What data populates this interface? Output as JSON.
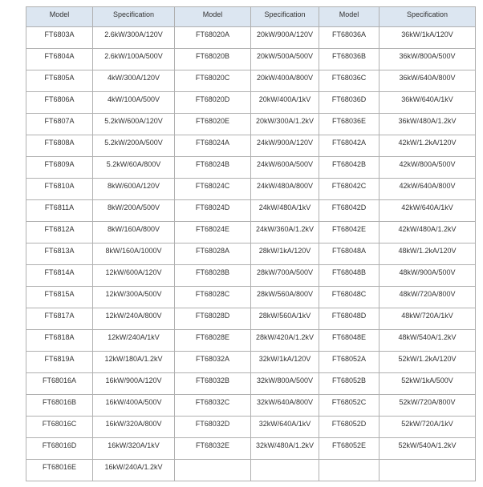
{
  "table": {
    "header": [
      "Model",
      "Specification",
      "Model",
      "Specification",
      "Model",
      "Specification"
    ],
    "rows": [
      [
        "FT6803A",
        "2.6kW/300A/120V",
        "FT68020A",
        "20kW/900A/120V",
        "FT68036A",
        "36kW/1kA/120V"
      ],
      [
        "FT6804A",
        "2.6kW/100A/500V",
        "FT68020B",
        "20kW/500A/500V",
        "FT68036B",
        "36kW/800A/500V"
      ],
      [
        "FT6805A",
        "4kW/300A/120V",
        "FT68020C",
        "20kW/400A/800V",
        "FT68036C",
        "36kW/640A/800V"
      ],
      [
        "FT6806A",
        "4kW/100A/500V",
        "FT68020D",
        "20kW/400A/1kV",
        "FT68036D",
        "36kW/640A/1kV"
      ],
      [
        "FT6807A",
        "5.2kW/600A/120V",
        "FT68020E",
        "20kW/300A/1.2kV",
        "FT68036E",
        "36kW/480A/1.2kV"
      ],
      [
        "FT6808A",
        "5.2kW/200A/500V",
        "FT68024A",
        "24kW/900A/120V",
        "FT68042A",
        "42kW/1.2kA/120V"
      ],
      [
        "FT6809A",
        "5.2kW/60A/800V",
        "FT68024B",
        "24kW/600A/500V",
        "FT68042B",
        "42kW/800A/500V"
      ],
      [
        "FT6810A",
        "8kW/600A/120V",
        "FT68024C",
        "24kW/480A/800V",
        "FT68042C",
        "42kW/640A/800V"
      ],
      [
        "FT6811A",
        "8kW/200A/500V",
        "FT68024D",
        "24kW/480A/1kV",
        "FT68042D",
        "42kW/640A/1kV"
      ],
      [
        "FT6812A",
        "8kW/160A/800V",
        "FT68024E",
        "24kW/360A/1.2kV",
        "FT68042E",
        "42kW/480A/1.2kV"
      ],
      [
        "FT6813A",
        "8kW/160A/1000V",
        "FT68028A",
        "28kW/1kA/120V",
        "FT68048A",
        "48kW/1.2kA/120V"
      ],
      [
        "FT6814A",
        "12kW/600A/120V",
        "FT68028B",
        "28kW/700A/500V",
        "FT68048B",
        "48kW/900A/500V"
      ],
      [
        "FT6815A",
        "12kW/300A/500V",
        "FT68028C",
        "28kW/560A/800V",
        "FT68048C",
        "48kW/720A/800V"
      ],
      [
        "FT6817A",
        "12kW/240A/800V",
        "FT68028D",
        "28kW/560A/1kV",
        "FT68048D",
        "48kW/720A/1kV"
      ],
      [
        "FT6818A",
        "12kW/240A/1kV",
        "FT68028E",
        "28kW/420A/1.2kV",
        "FT68048E",
        "48kW/540A/1.2kV"
      ],
      [
        "FT6819A",
        "12kW/180A/1.2kV",
        "FT68032A",
        "32kW/1kA/120V",
        "FT68052A",
        "52kW/1.2kA/120V"
      ],
      [
        "FT68016A",
        "16kW/900A/120V",
        "FT68032B",
        "32kW/800A/500V",
        "FT68052B",
        "52kW/1kA/500V"
      ],
      [
        "FT68016B",
        "16kW/400A/500V",
        "FT68032C",
        "32kW/640A/800V",
        "FT68052C",
        "52kW/720A/800V"
      ],
      [
        "FT68016C",
        "16kW/320A/800V",
        "FT68032D",
        "32kW/640A/1kV",
        "FT68052D",
        "52kW/720A/1kV"
      ],
      [
        "FT68016D",
        "16kW/320A/1kV",
        "FT68032E",
        "32kW/480A/1.2kV",
        "FT68052E",
        "52kW/540A/1.2kV"
      ],
      [
        "FT68016E",
        "16kW/240A/1.2kV"
      ]
    ]
  }
}
